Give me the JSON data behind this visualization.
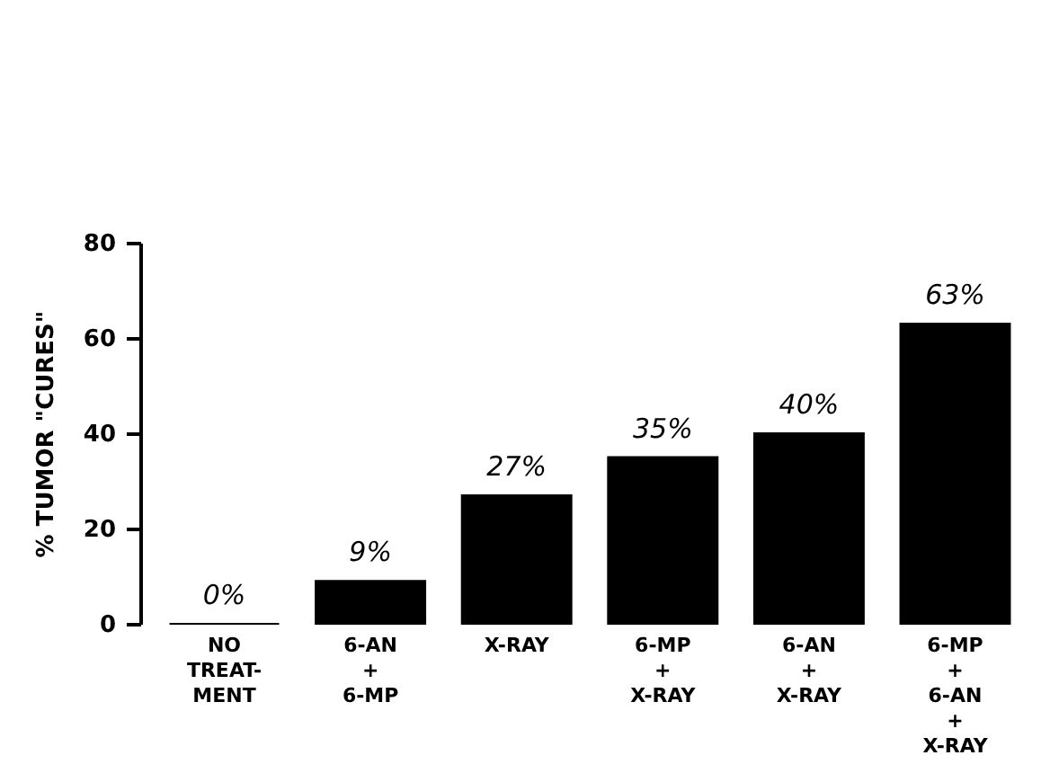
{
  "chart_data": {
    "type": "bar",
    "ylabel": "% TUMOR \"CURES\"",
    "categories": [
      "NO\nTREAT-\nMENT",
      "6-AN\n+\n6-MP",
      "X-RAY",
      "6-MP\n+\nX-RAY",
      "6-AN\n+\nX-RAY",
      "6-MP\n+\n6-AN\n+\nX-RAY"
    ],
    "values": [
      0,
      9,
      27,
      35,
      40,
      63
    ],
    "value_labels": [
      "0%",
      "9%",
      "27%",
      "35%",
      "40%",
      "63%"
    ],
    "color": "#000000",
    "ylim": [
      0,
      80
    ],
    "yticks": [
      0,
      20,
      40,
      60,
      80
    ],
    "grid": false
  }
}
